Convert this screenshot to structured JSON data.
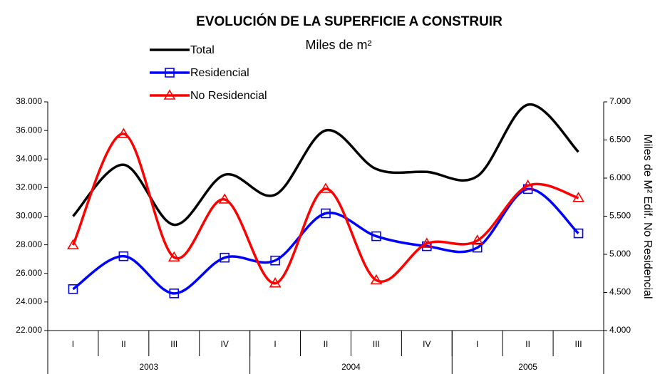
{
  "chart_data": {
    "type": "line",
    "title": "EVOLUCIÓN DE LA SUPERFICIE A CONSTRUIR",
    "subtitle": "Miles de m²",
    "y2_label": "Miles de M² Edif. No Residencial",
    "categories": [
      "I",
      "II",
      "III",
      "IV",
      "I",
      "II",
      "III",
      "IV",
      "I",
      "II",
      "III"
    ],
    "groups": [
      {
        "label": "2003",
        "size": 4
      },
      {
        "label": "2004",
        "size": 4
      },
      {
        "label": "2005",
        "size": 3
      }
    ],
    "series": [
      {
        "name": "Total",
        "color": "#000000",
        "marker": "none",
        "axis": "y",
        "values": [
          30000,
          33600,
          29400,
          32900,
          31500,
          36000,
          33300,
          33100,
          32800,
          37800,
          34500
        ]
      },
      {
        "name": "Residencial",
        "color": "#0000ff",
        "marker": "square",
        "axis": "y",
        "values": [
          24900,
          27200,
          24600,
          27100,
          26900,
          30200,
          28600,
          27900,
          27800,
          31900,
          28800
        ]
      },
      {
        "name": "No Residencial",
        "color": "#ff0000",
        "marker": "triangle",
        "axis": "y2",
        "values": [
          5120,
          6580,
          4960,
          5720,
          4620,
          5860,
          4660,
          5140,
          5180,
          5900,
          5740
        ]
      }
    ],
    "ylim": [
      22000,
      38000
    ],
    "yticks": [
      {
        "value": 22000,
        "label": "22.000"
      },
      {
        "value": 24000,
        "label": "24.000"
      },
      {
        "value": 26000,
        "label": "26.000"
      },
      {
        "value": 28000,
        "label": "28.000"
      },
      {
        "value": 30000,
        "label": "30.000"
      },
      {
        "value": 32000,
        "label": "32.000"
      },
      {
        "value": 34000,
        "label": "34.000"
      },
      {
        "value": 36000,
        "label": "36.000"
      },
      {
        "value": 38000,
        "label": "38.000"
      }
    ],
    "y2lim": [
      4000,
      7000
    ],
    "y2ticks": [
      {
        "value": 4000,
        "label": "4.000"
      },
      {
        "value": 4500,
        "label": "4.500"
      },
      {
        "value": 5000,
        "label": "5.000"
      },
      {
        "value": 5500,
        "label": "5.500"
      },
      {
        "value": 6000,
        "label": "6.000"
      },
      {
        "value": 6500,
        "label": "6.500"
      },
      {
        "value": 7000,
        "label": "7.000"
      }
    ],
    "grid": false
  }
}
